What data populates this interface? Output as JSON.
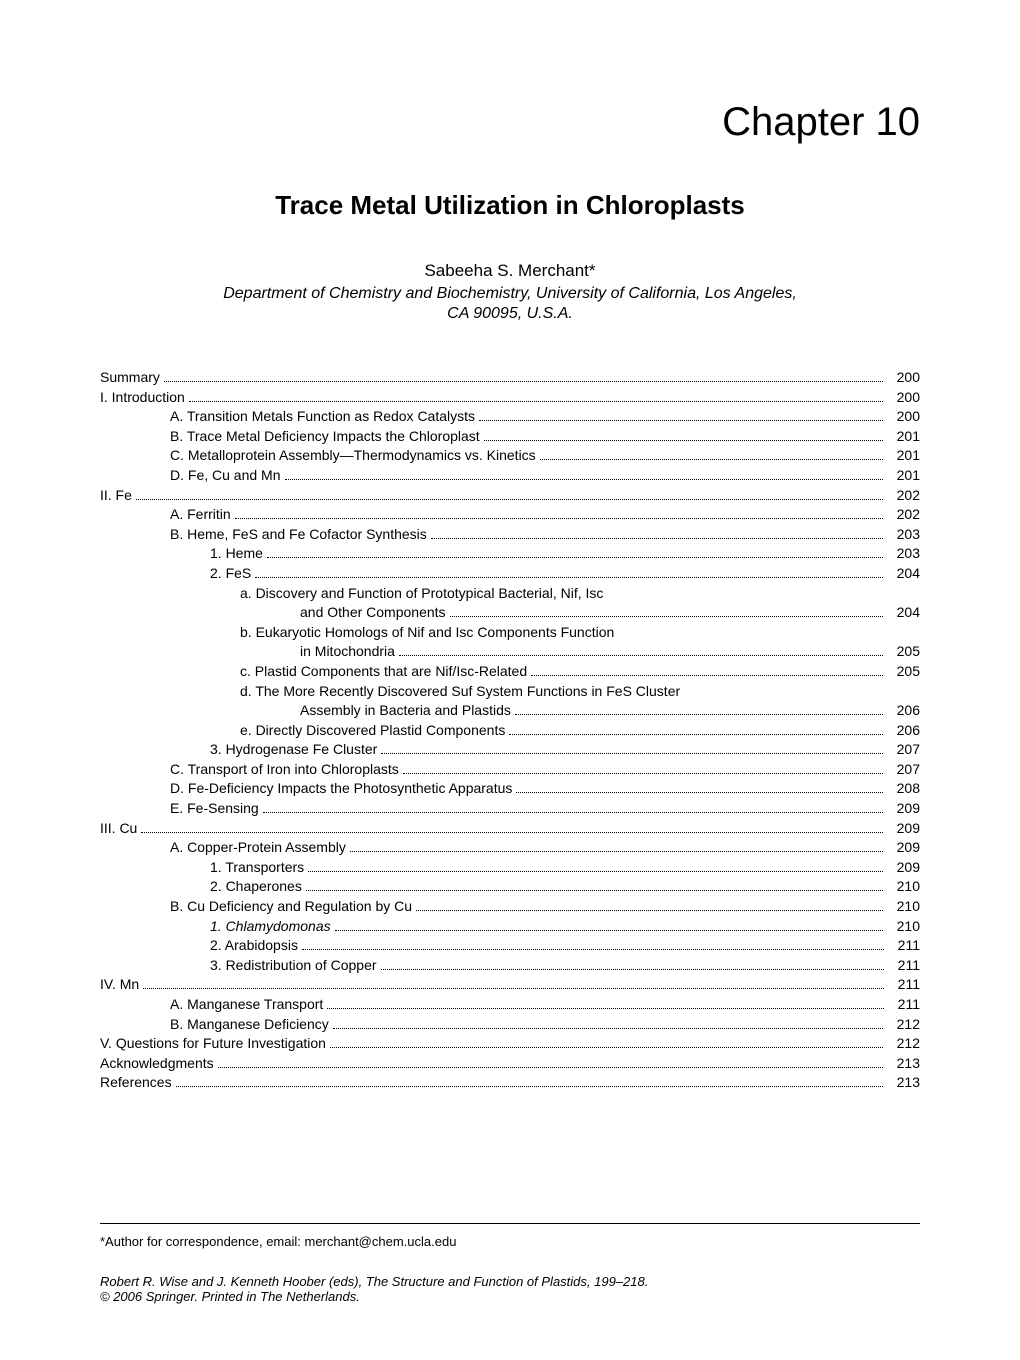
{
  "chapter_number": "Chapter 10",
  "chapter_title": "Trace Metal Utilization in Chloroplasts",
  "author": "Sabeeha S. Merchant*",
  "affiliation_line1": "Department of Chemistry and Biochemistry, University of California, Los Angeles,",
  "affiliation_line2": "CA 90095, U.S.A.",
  "toc": [
    {
      "indent": 0,
      "label": "Summary",
      "page": "200"
    },
    {
      "indent": 0,
      "label": "I.    Introduction",
      "page": "200"
    },
    {
      "indent": 2,
      "label": "A. Transition Metals Function as Redox Catalysts",
      "page": "200"
    },
    {
      "indent": 2,
      "label": "B. Trace Metal Deficiency Impacts the Chloroplast",
      "page": "201"
    },
    {
      "indent": 2,
      "label": "C. Metalloprotein Assembly—Thermodynamics vs. Kinetics",
      "page": "201"
    },
    {
      "indent": 2,
      "label": "D. Fe, Cu and Mn",
      "page": "201"
    },
    {
      "indent": 0,
      "label": "II.   Fe",
      "page": "202"
    },
    {
      "indent": 2,
      "label": "A. Ferritin",
      "page": "202"
    },
    {
      "indent": 2,
      "label": "B. Heme, FeS and Fe Cofactor Synthesis",
      "page": "203"
    },
    {
      "indent": 3,
      "label": "1. Heme",
      "page": "203"
    },
    {
      "indent": 3,
      "label": "2. FeS",
      "page": "204"
    },
    {
      "indent": 4,
      "label": "a. Discovery and Function of Prototypical Bacterial, Nif, Isc",
      "page": null
    },
    {
      "indent": 5,
      "label": "and Other Components",
      "page": "204"
    },
    {
      "indent": 4,
      "label": "b. Eukaryotic Homologs of Nif and Isc Components Function",
      "page": null
    },
    {
      "indent": 5,
      "label": "in Mitochondria",
      "page": "205"
    },
    {
      "indent": 4,
      "label": "c. Plastid Components that are Nif/Isc-Related",
      "page": "205"
    },
    {
      "indent": 4,
      "label": "d. The More Recently Discovered Suf System Functions in FeS Cluster",
      "page": null
    },
    {
      "indent": 5,
      "label": "Assembly in Bacteria and Plastids",
      "page": "206"
    },
    {
      "indent": 4,
      "label": "e. Directly Discovered Plastid Components",
      "page": "206"
    },
    {
      "indent": 3,
      "label": "3. Hydrogenase Fe Cluster",
      "page": "207"
    },
    {
      "indent": 2,
      "label": "C. Transport of Iron into Chloroplasts",
      "page": "207"
    },
    {
      "indent": 2,
      "label": "D. Fe-Deficiency Impacts the Photosynthetic Apparatus",
      "page": "208"
    },
    {
      "indent": 2,
      "label": "E. Fe-Sensing",
      "page": "209"
    },
    {
      "indent": 0,
      "label": "III.  Cu",
      "page": "209"
    },
    {
      "indent": 2,
      "label": "A. Copper-Protein Assembly",
      "page": "209"
    },
    {
      "indent": 3,
      "label": "1. Transporters",
      "page": "209"
    },
    {
      "indent": 3,
      "label": "2. Chaperones",
      "page": "210"
    },
    {
      "indent": 2,
      "label": "B. Cu Deficiency and Regulation by Cu",
      "page": "210"
    },
    {
      "indent": 3,
      "label": "1. Chlamydomonas",
      "page": "210",
      "italic": true
    },
    {
      "indent": 3,
      "label": "2. Arabidopsis",
      "page": "211"
    },
    {
      "indent": 3,
      "label": "3. Redistribution of Copper",
      "page": "211"
    },
    {
      "indent": 0,
      "label": "IV.  Mn",
      "page": "211"
    },
    {
      "indent": 2,
      "label": "A. Manganese Transport",
      "page": "211"
    },
    {
      "indent": 2,
      "label": "B. Manganese Deficiency",
      "page": "212"
    },
    {
      "indent": 0,
      "label": "V.   Questions for Future Investigation",
      "page": "212"
    },
    {
      "indent": 0,
      "label": "Acknowledgments",
      "page": "213"
    },
    {
      "indent": 0,
      "label": "References",
      "page": "213"
    }
  ],
  "correspondence": "*Author for correspondence, email: merchant@chem.ucla.edu",
  "citation": "Robert R. Wise and J. Kenneth Hoober (eds), The Structure and Function of Plastids, 199–218.",
  "copyright": "© 2006 Springer. Printed in The Netherlands."
}
